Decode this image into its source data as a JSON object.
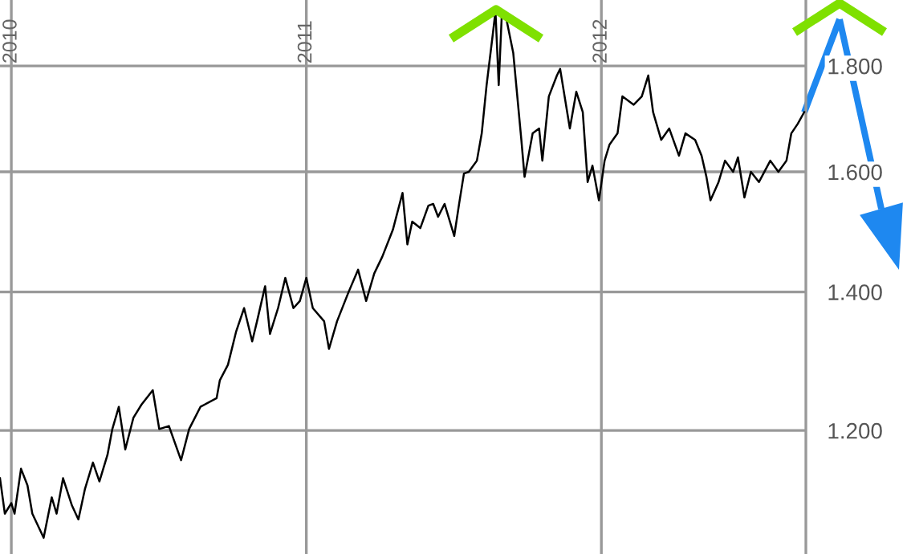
{
  "chart_data": {
    "type": "line",
    "log": "y",
    "grid": true,
    "marker": "none",
    "line_style": "solid",
    "x": [
      "2009-12-18",
      "2009-12-24",
      "2010-01-01",
      "2010-01-05",
      "2010-01-13",
      "2010-01-21",
      "2010-01-27",
      "2010-02-10",
      "2010-02-20",
      "2010-02-26",
      "2010-03-06",
      "2010-03-17",
      "2010-03-25",
      "2010-04-02",
      "2010-04-12",
      "2010-04-20",
      "2010-04-30",
      "2010-05-06",
      "2010-05-14",
      "2010-05-22",
      "2010-06-01",
      "2010-06-11",
      "2010-06-25",
      "2010-07-03",
      "2010-07-15",
      "2010-07-30",
      "2010-08-09",
      "2010-08-23",
      "2010-09-12",
      "2010-09-16",
      "2010-09-26",
      "2010-10-06",
      "2010-10-16",
      "2010-10-26",
      "2010-11-01",
      "2010-11-11",
      "2010-11-17",
      "2010-11-27",
      "2010-12-06",
      "2010-12-16",
      "2010-12-24",
      "2011-01-01",
      "2011-01-09",
      "2011-01-23",
      "2011-01-29",
      "2011-02-08",
      "2011-02-22",
      "2011-03-06",
      "2011-03-16",
      "2011-03-26",
      "2011-04-05",
      "2011-04-18",
      "2011-04-30",
      "2011-05-06",
      "2011-05-12",
      "2011-05-22",
      "2011-06-01",
      "2011-06-07",
      "2011-06-13",
      "2011-06-21",
      "2011-07-03",
      "2011-07-09",
      "2011-07-15",
      "2011-07-21",
      "2011-07-31",
      "2011-08-06",
      "2011-08-12",
      "2011-08-20",
      "2011-08-23",
      "2011-08-27",
      "2011-08-31",
      "2011-09-06",
      "2011-09-14",
      "2011-09-24",
      "2011-09-28",
      "2011-10-08",
      "2011-10-16",
      "2011-10-20",
      "2011-10-28",
      "2011-11-07",
      "2011-11-11",
      "2011-11-23",
      "2011-12-01",
      "2011-12-09",
      "2011-12-15",
      "2011-12-21",
      "2011-12-29",
      "2012-01-05",
      "2012-01-11",
      "2012-01-21",
      "2012-01-27",
      "2012-02-10",
      "2012-02-20",
      "2012-02-28",
      "2012-03-05",
      "2012-03-15",
      "2012-03-25",
      "2012-04-06",
      "2012-04-14",
      "2012-04-26",
      "2012-05-04",
      "2012-05-10",
      "2012-05-15",
      "2012-05-25",
      "2012-06-02",
      "2012-06-12",
      "2012-06-18",
      "2012-06-26",
      "2012-07-04",
      "2012-07-14",
      "2012-07-28",
      "2012-08-07",
      "2012-08-17",
      "2012-08-23",
      "2012-08-31",
      "2012-09-08"
    ],
    "series": [
      {
        "color": "#000000",
        "values": [
          1138,
          1094,
          1107,
          1094,
          1150,
          1129,
          1094,
          1065,
          1114,
          1094,
          1138,
          1104,
          1087,
          1124,
          1158,
          1134,
          1168,
          1202,
          1232,
          1175,
          1217,
          1235,
          1255,
          1202,
          1206,
          1161,
          1202,
          1232,
          1244,
          1269,
          1291,
          1339,
          1375,
          1325,
          1355,
          1409,
          1336,
          1375,
          1422,
          1375,
          1386,
          1422,
          1375,
          1355,
          1314,
          1355,
          1399,
          1435,
          1386,
          1429,
          1456,
          1500,
          1563,
          1476,
          1514,
          1503,
          1541,
          1544,
          1522,
          1544,
          1490,
          1544,
          1597,
          1600,
          1620,
          1670,
          1762,
          1869,
          1913,
          1762,
          1913,
          1892,
          1826,
          1658,
          1591,
          1670,
          1679,
          1620,
          1740,
          1781,
          1794,
          1679,
          1749,
          1710,
          1582,
          1611,
          1550,
          1620,
          1649,
          1670,
          1740,
          1724,
          1740,
          1781,
          1710,
          1658,
          1679,
          1629,
          1670,
          1658,
          1629,
          1591,
          1550,
          1582,
          1620,
          1600,
          1626,
          1555,
          1600,
          1582,
          1620,
          1600,
          1620,
          1670,
          1688,
          1710
        ]
      }
    ],
    "xlim": [
      "2009-12-18",
      "2012-09-10"
    ],
    "xticks": [
      {
        "value": "2010-01-01",
        "label": "2010"
      },
      {
        "value": "2011-01-01",
        "label": "2011"
      },
      {
        "value": "2012-01-01",
        "label": "2012"
      }
    ],
    "ylim": [
      1046,
      1937
    ],
    "yticks": [
      {
        "value": 1200,
        "label": "1.200"
      },
      {
        "value": 1400,
        "label": "1.400"
      },
      {
        "value": 1600,
        "label": "1.600"
      },
      {
        "value": 1800,
        "label": "1.800"
      }
    ]
  }
}
